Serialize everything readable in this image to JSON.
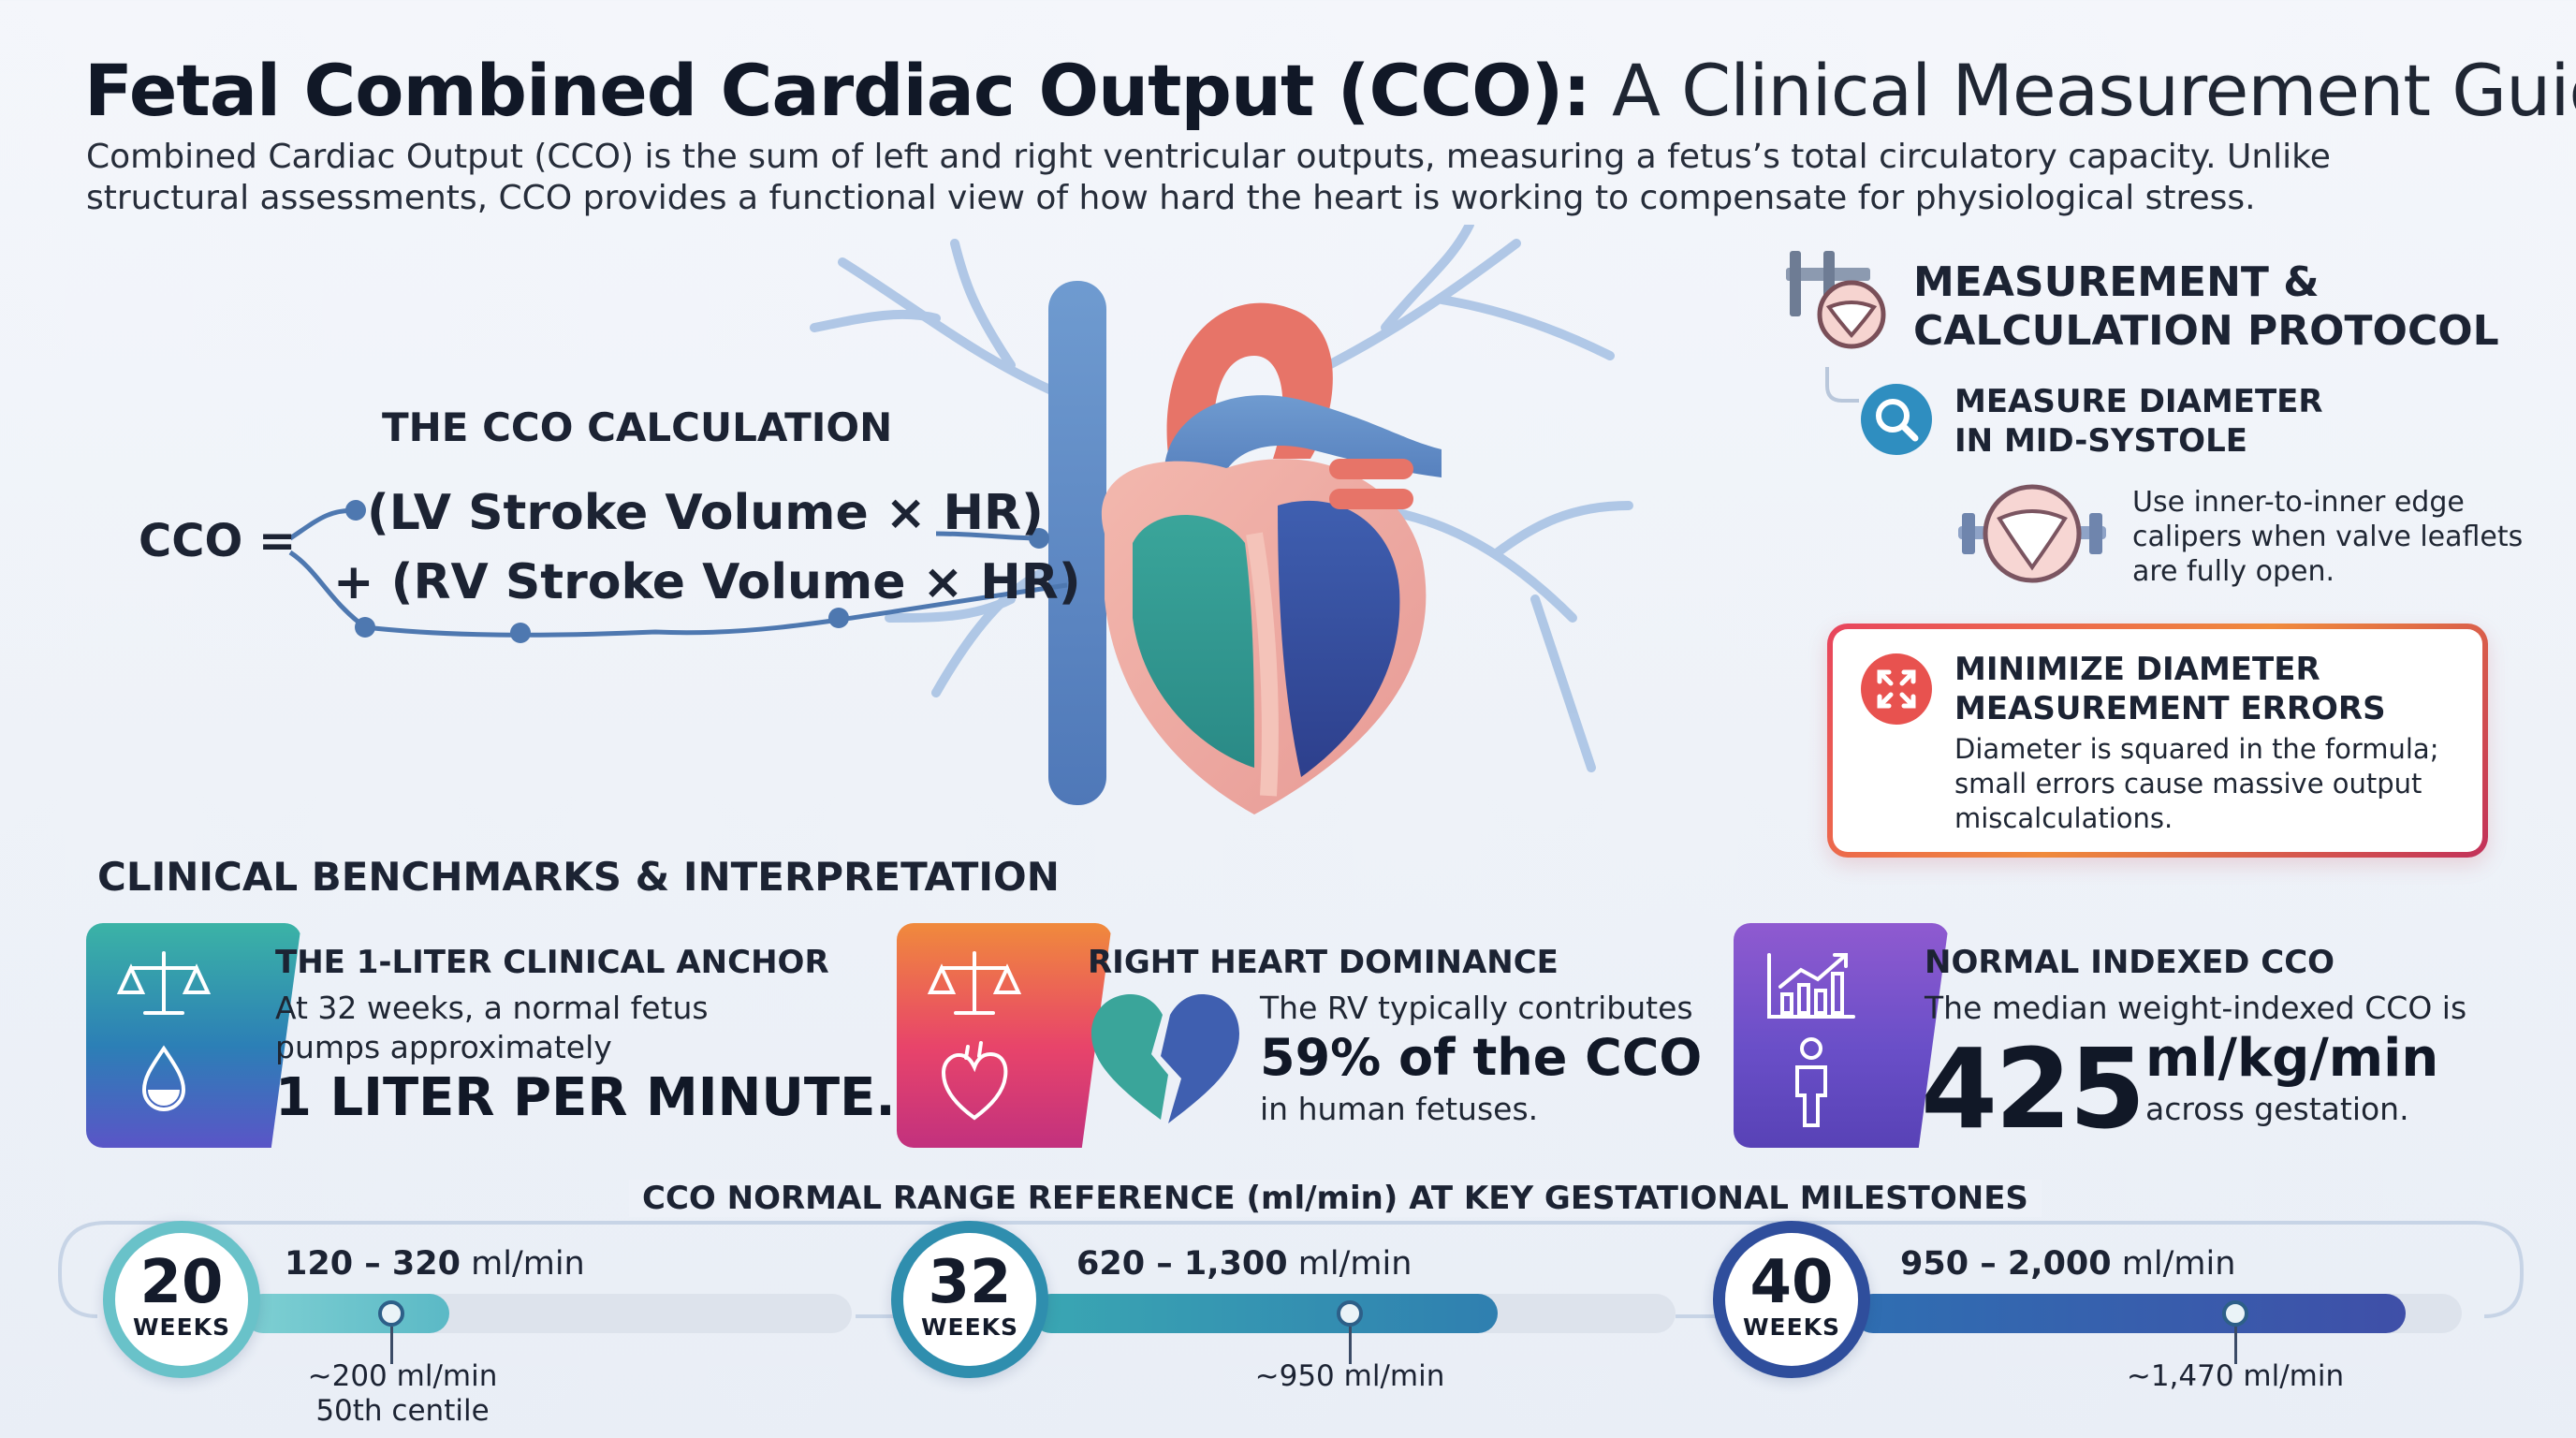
{
  "header": {
    "title_bold": "Fetal Combined Cardiac Output (CCO):",
    "title_light": "A Clinical Measurement Guide",
    "intro": "Combined Cardiac Output (CCO) is the sum of left and right ventricular outputs, measuring a fetus’s total circulatory capacity. Unlike structural assessments, CCO provides a functional view of how hard the heart is working to compensate for physiological stress."
  },
  "calculation": {
    "heading": "THE CCO CALCULATION",
    "lhs": "CCO =",
    "lv_term": "(LV Stroke Volume × HR)",
    "rv_term": "+ (RV Stroke Volume × HR)"
  },
  "protocol": {
    "title_line1": "MEASUREMENT &",
    "title_line2": "CALCULATION PROTOCOL",
    "step1_title_line1": "MEASURE DIAMETER",
    "step1_title_line2": "IN MID-SYSTOLE",
    "step1_text": "Use inner-to-inner edge calipers when valve leaflets are fully open.",
    "warning_title_line1": "MINIMIZE DIAMETER",
    "warning_title_line2": "MEASUREMENT ERRORS",
    "warning_text": "Diameter is squared in the formula; small errors cause massive output miscalculations."
  },
  "benchmarks": {
    "heading": "CLINICAL BENCHMARKS & INTERPRETATION",
    "card1": {
      "title": "THE 1-LITER CLINICAL ANCHOR",
      "text": "At 32 weeks, a normal fetus pumps approximately",
      "highlight": "1 LITER PER MINUTE."
    },
    "card2": {
      "title": "RIGHT HEART DOMINANCE",
      "text1": "The RV typically contributes",
      "highlight": "59% of the CCO",
      "text2": "in human fetuses."
    },
    "card3": {
      "title": "NORMAL INDEXED CCO",
      "text1": "The median weight-indexed CCO is",
      "value": "425",
      "unit": "ml/kg/min",
      "text2": "across gestation."
    }
  },
  "ranges": {
    "heading": "CCO NORMAL RANGE REFERENCE (ml/min) AT KEY GESTATIONAL MILESTONES",
    "weeks_label": "WEEKS",
    "milestones": [
      {
        "week": "20",
        "range": "120 – 320",
        "unit": " ml/min",
        "median": "~200 ml/min",
        "median_note": "50th centile",
        "fill_fraction": 0.34,
        "marker_fraction": 0.3
      },
      {
        "week": "32",
        "range": "620 – 1,300",
        "unit": " ml/min",
        "median": "~950 ml/min",
        "median_note": "",
        "fill_fraction": 0.72,
        "marker_fraction": 0.63
      },
      {
        "week": "40",
        "range": "950 – 2,000",
        "unit": " ml/min",
        "median": "~1,470 ml/min",
        "median_note": "",
        "fill_fraction": 0.91,
        "marker_fraction": 0.8
      }
    ]
  },
  "colors": {
    "teal": "#3bb3a6",
    "blue": "#2f4e9c",
    "coral": "#e8446a",
    "orange": "#f08a3c",
    "purple": "#6a4fc8",
    "text": "#1c2333"
  }
}
